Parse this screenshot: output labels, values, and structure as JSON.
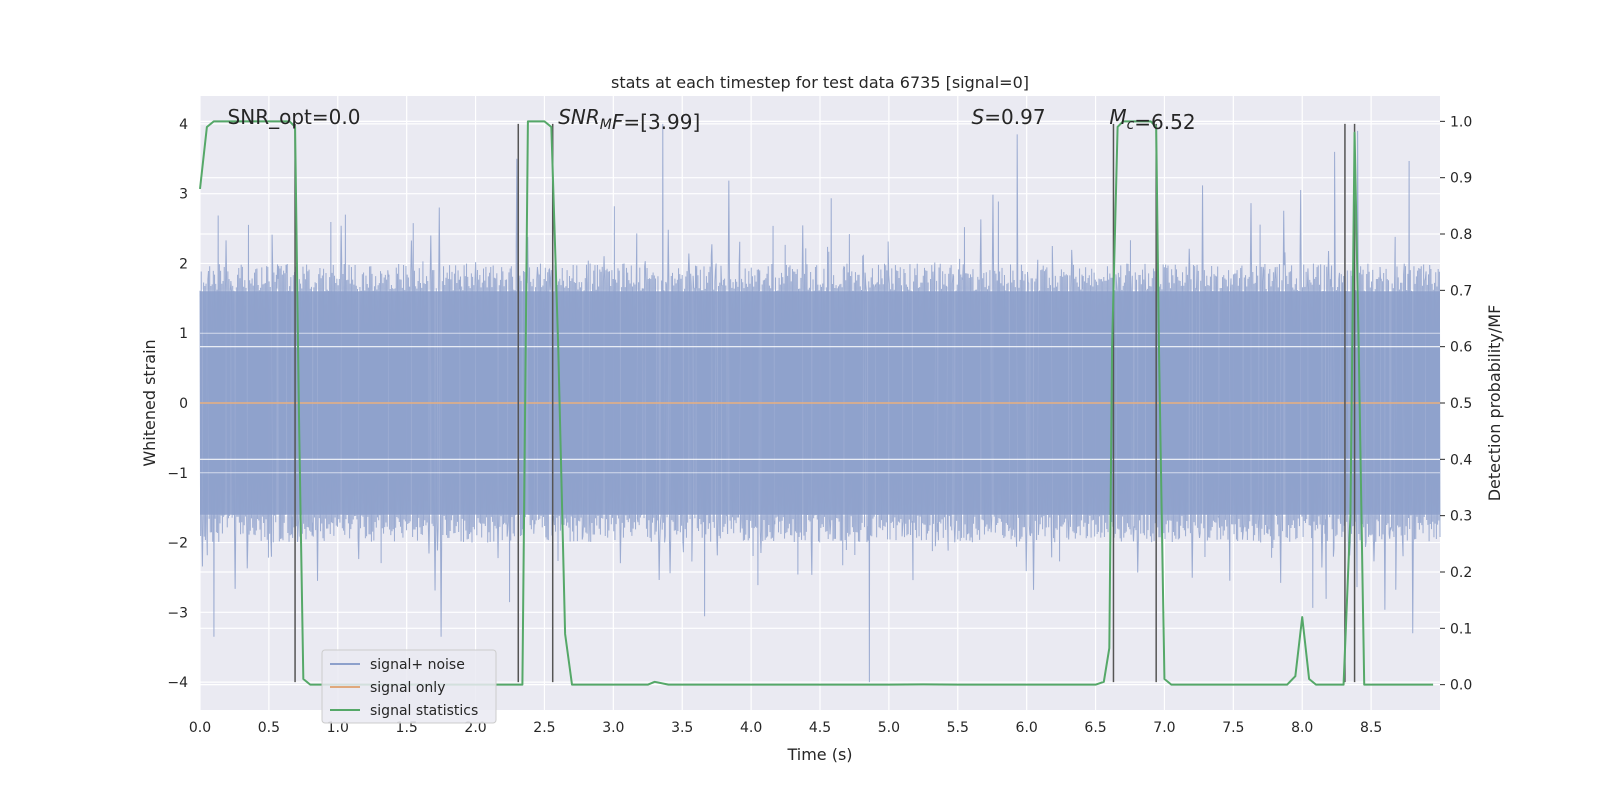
{
  "chart_data": {
    "type": "line",
    "title": "stats at each timestep for test data 6735 [signal=0]",
    "xlabel": "Time (s)",
    "ylabel": "Whitened strain",
    "y2label": "Detection probability/MF",
    "xlim": [
      0.0,
      9.0
    ],
    "ylim": [
      -4.4,
      4.4
    ],
    "y2lim": [
      -0.045,
      1.045
    ],
    "xticks": [
      0.0,
      0.5,
      1.0,
      1.5,
      2.0,
      2.5,
      3.0,
      3.5,
      4.0,
      4.5,
      5.0,
      5.5,
      6.0,
      6.5,
      7.0,
      7.5,
      8.0,
      8.5
    ],
    "xtick_labels": [
      "0.0",
      "0.5",
      "1.0",
      "1.5",
      "2.0",
      "2.5",
      "3.0",
      "3.5",
      "4.0",
      "4.5",
      "5.0",
      "5.5",
      "6.0",
      "6.5",
      "7.0",
      "7.5",
      "8.0",
      "8.5"
    ],
    "yticks": [
      -4,
      -3,
      -2,
      -1,
      0,
      1,
      2,
      3,
      4
    ],
    "ytick_labels": [
      "−4",
      "−3",
      "−2",
      "−1",
      "0",
      "1",
      "2",
      "3",
      "4"
    ],
    "y2ticks": [
      0.0,
      0.1,
      0.2,
      0.3,
      0.4,
      0.5,
      0.6,
      0.7,
      0.8,
      0.9,
      1.0
    ],
    "y2tick_labels": [
      "0.0",
      "0.1",
      "0.2",
      "0.3",
      "0.4",
      "0.5",
      "0.6",
      "0.7",
      "0.8",
      "0.9",
      "1.0"
    ],
    "grid": true,
    "legend_position": "lower-left",
    "legend": [
      "signal+ noise",
      "signal only",
      "signal statistics"
    ],
    "colors": {
      "noise": "#8da0cb",
      "signal_only": "#e0a87c",
      "statistics": "#55a868",
      "vline": "#555555",
      "background": "#eaeaf2",
      "grid": "#ffffff"
    },
    "annotations": [
      {
        "id": "snr-opt",
        "parts": [
          {
            "t": "SNR_opt=0.0"
          }
        ],
        "x": 0.2
      },
      {
        "id": "snr-mf",
        "parts": [
          {
            "t": "SNR",
            "i": true
          },
          {
            "t": "M",
            "i": true,
            "sub": true
          },
          {
            "t": "F",
            "i": true
          },
          {
            "t": "=[3.99]"
          }
        ],
        "x": 2.6
      },
      {
        "id": "s-value",
        "parts": [
          {
            "t": "S",
            "i": true
          },
          {
            "t": "=0.97"
          }
        ],
        "x": 5.6
      },
      {
        "id": "mc-value",
        "parts": [
          {
            "t": "M",
            "i": true
          },
          {
            "t": "c",
            "i": true,
            "sub": true
          },
          {
            "t": "=6.52"
          }
        ],
        "x": 6.6
      }
    ],
    "series": [
      {
        "name": "signal statistics",
        "axis": "right",
        "x": [
          0.0,
          0.05,
          0.1,
          0.2,
          0.3,
          0.4,
          0.5,
          0.6,
          0.65,
          0.69,
          0.72,
          0.75,
          0.8,
          0.9,
          1.0,
          1.5,
          2.0,
          2.25,
          2.3,
          2.34,
          2.38,
          2.45,
          2.5,
          2.55,
          2.6,
          2.65,
          2.7,
          2.9,
          3.2,
          3.25,
          3.3,
          3.4,
          3.6,
          4.0,
          5.0,
          5.25,
          5.5,
          6.0,
          6.5,
          6.56,
          6.6,
          6.62,
          6.66,
          6.7,
          6.8,
          6.9,
          6.94,
          6.96,
          7.0,
          7.05,
          7.1,
          7.3,
          7.5,
          7.89,
          7.95,
          8.0,
          8.05,
          8.1,
          8.3,
          8.35,
          8.38,
          8.41,
          8.45,
          8.5,
          8.7,
          8.95
        ],
        "values": [
          0.88,
          0.99,
          1.0,
          1.0,
          1.0,
          1.0,
          1.0,
          1.0,
          1.0,
          0.99,
          0.45,
          0.01,
          0.0,
          0.0,
          0.0,
          0.0,
          0.0,
          0.0,
          0.0,
          0.0,
          1.0,
          1.0,
          1.0,
          0.99,
          0.6,
          0.09,
          0.0,
          0.0,
          0.0,
          0.0,
          0.005,
          0.0,
          0.0,
          0.0,
          0.0,
          0.0005,
          0.0,
          0.0,
          0.0,
          0.005,
          0.065,
          0.6,
          0.99,
          1.0,
          1.0,
          1.0,
          0.99,
          0.6,
          0.01,
          0.0,
          0.0,
          0.0,
          0.0,
          0.0,
          0.015,
          0.12,
          0.01,
          0.0,
          0.0,
          0.3,
          0.98,
          0.6,
          0.0,
          0.0,
          0.0,
          0.0
        ]
      },
      {
        "name": "signal only",
        "axis": "left",
        "x": [
          0.0,
          9.0
        ],
        "values": [
          0.0,
          0.0
        ]
      }
    ],
    "vlines": [
      0.69,
      2.31,
      2.56,
      6.63,
      6.94,
      8.31,
      8.38
    ],
    "noise": {
      "name": "signal+ noise",
      "axis": "left",
      "x_range": [
        0.0,
        9.0
      ],
      "samples": 2048,
      "core_range": [
        -1.6,
        1.6
      ],
      "notable_spikes": [
        {
          "x": 0.1,
          "y": -3.35
        },
        {
          "x": 1.75,
          "y": -3.35
        },
        {
          "x": 2.3,
          "y": 3.5
        },
        {
          "x": 3.36,
          "y": 4.0
        },
        {
          "x": 4.86,
          "y": -4.0
        },
        {
          "x": 5.93,
          "y": 3.85
        },
        {
          "x": 8.4,
          "y": 3.9
        },
        {
          "x": 8.8,
          "y": -3.3
        }
      ]
    }
  }
}
